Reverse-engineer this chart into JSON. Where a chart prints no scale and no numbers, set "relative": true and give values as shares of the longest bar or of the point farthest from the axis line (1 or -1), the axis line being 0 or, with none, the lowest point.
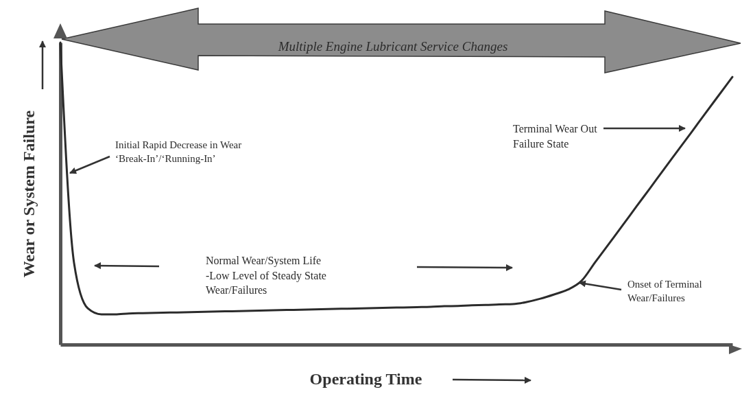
{
  "chart_data": {
    "type": "line",
    "relative": true,
    "xlabel": "Operating Time",
    "ylabel": "Wear or System Failure",
    "color": "#2b2b2b",
    "line_style": "solid",
    "categories": [
      null,
      null,
      null,
      null,
      null,
      null,
      null,
      null,
      null,
      null,
      null,
      null,
      null,
      null,
      null,
      null,
      null,
      null,
      null,
      null,
      null,
      null,
      null,
      null,
      null,
      null,
      null,
      null,
      null,
      null,
      null,
      null,
      null,
      null,
      null,
      null,
      null,
      null,
      null,
      null,
      null,
      null,
      null,
      null,
      null,
      null,
      null,
      null,
      null,
      null
    ],
    "values": [
      1,
      0.27,
      0.12,
      0.1,
      0.1,
      0.103,
      0.104,
      0.105,
      0.106,
      0.107,
      0.108,
      0.109,
      0.11,
      0.111,
      0.112,
      0.113,
      0.114,
      0.115,
      0.116,
      0.117,
      0.118,
      0.119,
      0.12,
      0.121,
      0.122,
      0.123,
      0.124,
      0.125,
      0.127,
      0.128,
      0.13,
      0.131,
      0.133,
      0.134,
      0.141,
      0.152,
      0.166,
      0.182,
      0.211,
      0.273,
      0.334,
      0.395,
      0.457,
      0.518,
      0.58,
      0.641,
      0.702,
      0.764,
      0.825,
      0.886
    ],
    "annotations": [
      "Multiple Engine Lubricant Service Changes",
      "Initial Rapid Decrease in Wear\n‘Break-In’/‘Running-In’",
      "Terminal Wear Out\nFailure State",
      "  Normal Wear/System Life\n -Low Level of Steady State\nWear/Failures",
      "Onset of Terminal\nWear/Failures"
    ]
  }
}
